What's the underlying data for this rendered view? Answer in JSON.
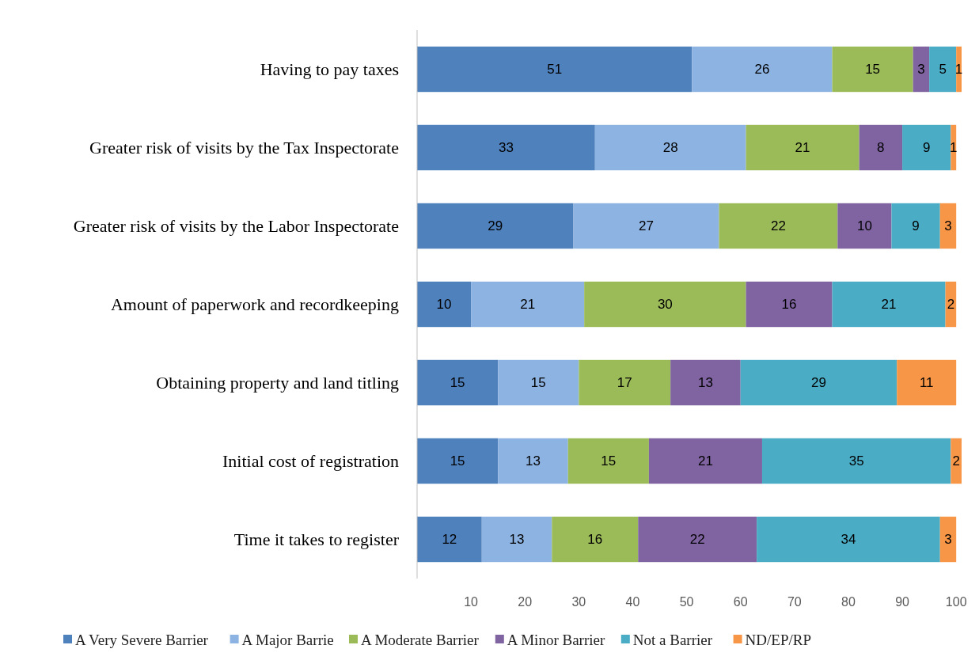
{
  "chart_data": {
    "type": "bar",
    "orientation": "horizontal",
    "stacked": true,
    "data_labels": true,
    "legend": "bottom",
    "categories": [
      "Having to pay taxes",
      "Greater risk of visits by the Tax Inspectorate",
      "Greater risk of visits by the Labor Inspectorate",
      "Amount of paperwork and recordkeeping",
      "Obtaining property and land titling",
      "Initial cost of registration",
      "Time it takes to register"
    ],
    "xlim": [
      0,
      101
    ],
    "xticks": [
      10,
      20,
      30,
      40,
      50,
      60,
      70,
      80,
      90,
      100
    ],
    "series": [
      {
        "name": "A Very Severe Barrier",
        "color": "#4f81bd",
        "values": [
          51,
          33,
          29,
          10,
          15,
          15,
          12
        ]
      },
      {
        "name": "A Major Barrie",
        "color": "#8db3e2",
        "values": [
          26,
          28,
          27,
          21,
          15,
          13,
          13
        ]
      },
      {
        "name": "A Moderate Barrier",
        "color": "#9bbb59",
        "values": [
          15,
          21,
          22,
          30,
          17,
          15,
          16
        ]
      },
      {
        "name": "A Minor Barrier",
        "color": "#8064a2",
        "values": [
          3,
          8,
          10,
          16,
          13,
          21,
          22
        ]
      },
      {
        "name": "Not a Barrier",
        "color": "#4bacc6",
        "values": [
          5,
          9,
          9,
          21,
          29,
          35,
          34
        ]
      },
      {
        "name": "ND/EP/RP",
        "color": "#f79646",
        "values": [
          1,
          1,
          3,
          2,
          11,
          2,
          3
        ]
      }
    ]
  }
}
